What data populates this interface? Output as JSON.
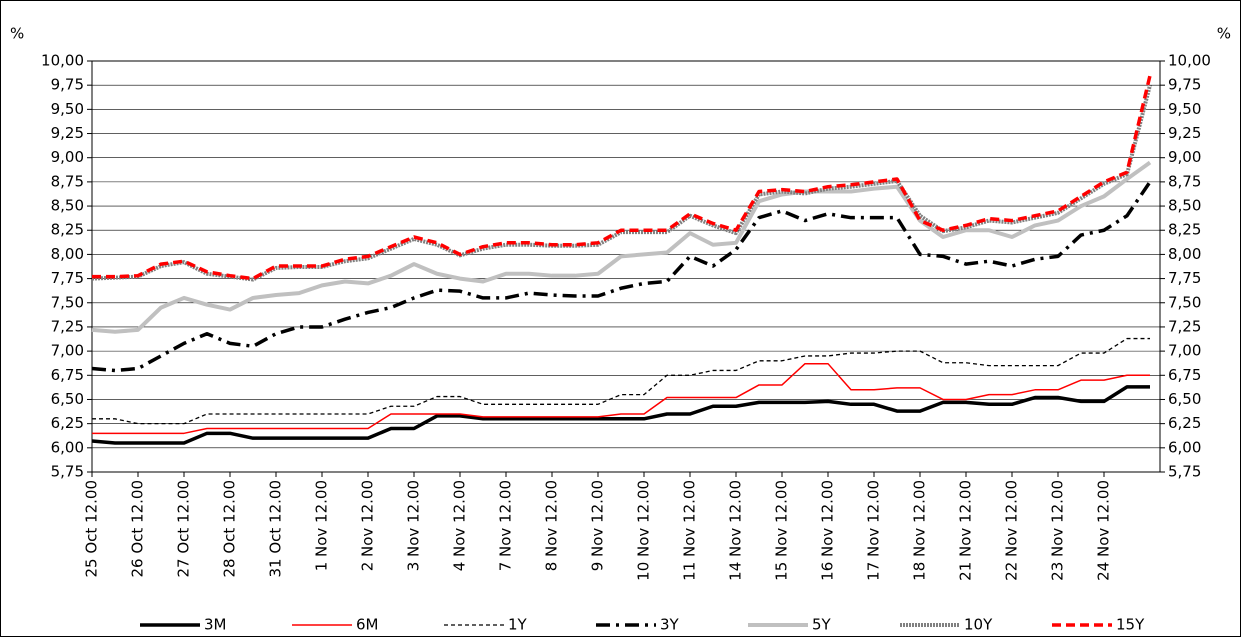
{
  "chart_data": {
    "type": "line",
    "y_axis_label": "%",
    "y2_axis_label": "%",
    "categories": [
      "25 Oct 12.00",
      null,
      "26 Oct 12.00",
      null,
      "27 Oct 12.00",
      null,
      "28 Oct 12.00",
      null,
      "31 Oct 12.00",
      null,
      "1 Nov 12.00",
      null,
      "2 Nov 12.00",
      null,
      "3 Nov 12.00",
      null,
      "4 Nov 12.00",
      null,
      "7 Nov 12.00",
      null,
      "8 Nov 12.00",
      null,
      "9 Nov 12.00",
      null,
      "10 Nov 12.00",
      null,
      "11 Nov 12.00",
      null,
      "14 Nov 12.00",
      null,
      "15 Nov 12.00",
      null,
      "16 Nov 12.00",
      null,
      "17 Nov 12.00",
      null,
      "18 Nov 12.00",
      null,
      "21 Nov 12.00",
      null,
      "22 Nov 12.00",
      null,
      "23 Nov 12.00",
      null,
      "24 Nov 12.00",
      null,
      null
    ],
    "series": [
      {
        "name": "3M",
        "color": "#000000",
        "width": 3.5,
        "dash": "solid",
        "values": [
          6.07,
          6.05,
          6.05,
          6.05,
          6.05,
          6.15,
          6.15,
          6.1,
          6.1,
          6.1,
          6.1,
          6.1,
          6.1,
          6.2,
          6.2,
          6.33,
          6.33,
          6.3,
          6.3,
          6.3,
          6.3,
          6.3,
          6.3,
          6.3,
          6.3,
          6.35,
          6.35,
          6.43,
          6.43,
          6.47,
          6.47,
          6.47,
          6.48,
          6.45,
          6.45,
          6.38,
          6.38,
          6.47,
          6.47,
          6.45,
          6.45,
          6.52,
          6.52,
          6.48,
          6.48,
          6.63,
          6.63
        ]
      },
      {
        "name": "6M",
        "color": "#ff0000",
        "width": 1.5,
        "dash": "solid",
        "values": [
          6.15,
          6.15,
          6.15,
          6.15,
          6.15,
          6.2,
          6.2,
          6.2,
          6.2,
          6.2,
          6.2,
          6.2,
          6.2,
          6.35,
          6.35,
          6.35,
          6.35,
          6.32,
          6.32,
          6.32,
          6.32,
          6.32,
          6.32,
          6.35,
          6.35,
          6.52,
          6.52,
          6.52,
          6.52,
          6.65,
          6.65,
          6.87,
          6.87,
          6.6,
          6.6,
          6.62,
          6.62,
          6.5,
          6.5,
          6.55,
          6.55,
          6.6,
          6.6,
          6.7,
          6.7,
          6.75,
          6.75
        ]
      },
      {
        "name": "1Y",
        "color": "#000000",
        "width": 1.3,
        "dash": "dashed",
        "values": [
          6.3,
          6.3,
          6.25,
          6.25,
          6.25,
          6.35,
          6.35,
          6.35,
          6.35,
          6.35,
          6.35,
          6.35,
          6.35,
          6.43,
          6.43,
          6.53,
          6.53,
          6.45,
          6.45,
          6.45,
          6.45,
          6.45,
          6.45,
          6.55,
          6.55,
          6.75,
          6.75,
          6.8,
          6.8,
          6.9,
          6.9,
          6.95,
          6.95,
          6.98,
          6.98,
          7.0,
          7.0,
          6.88,
          6.88,
          6.85,
          6.85,
          6.85,
          6.85,
          6.98,
          6.98,
          7.13,
          7.13
        ]
      },
      {
        "name": "3Y",
        "color": "#000000",
        "width": 3.5,
        "dash": "dashdot",
        "values": [
          6.82,
          6.8,
          6.82,
          6.95,
          7.08,
          7.18,
          7.08,
          7.05,
          7.18,
          7.25,
          7.25,
          7.33,
          7.4,
          7.45,
          7.55,
          7.63,
          7.62,
          7.55,
          7.55,
          7.6,
          7.58,
          7.57,
          7.57,
          7.65,
          7.7,
          7.72,
          7.98,
          7.88,
          8.05,
          8.38,
          8.45,
          8.35,
          8.42,
          8.38,
          8.38,
          8.38,
          8.0,
          7.98,
          7.9,
          7.93,
          7.88,
          7.95,
          7.98,
          8.2,
          8.25,
          8.4,
          8.75
        ]
      },
      {
        "name": "5Y",
        "color": "#c0c0c0",
        "width": 4,
        "dash": "solid",
        "values": [
          7.22,
          7.2,
          7.22,
          7.45,
          7.55,
          7.48,
          7.43,
          7.55,
          7.58,
          7.6,
          7.68,
          7.72,
          7.7,
          7.78,
          7.9,
          7.8,
          7.75,
          7.72,
          7.8,
          7.8,
          7.78,
          7.78,
          7.8,
          7.98,
          8.0,
          8.02,
          8.22,
          8.1,
          8.12,
          8.55,
          8.62,
          8.65,
          8.65,
          8.65,
          8.68,
          8.7,
          8.35,
          8.18,
          8.25,
          8.25,
          8.18,
          8.3,
          8.35,
          8.5,
          8.6,
          8.78,
          8.95
        ]
      },
      {
        "name": "10Y",
        "color": "#808080",
        "width": 4,
        "dash": "dotted",
        "values": [
          7.75,
          7.76,
          7.77,
          7.88,
          7.92,
          7.8,
          7.77,
          7.74,
          7.86,
          7.87,
          7.87,
          7.93,
          7.96,
          8.06,
          8.16,
          8.1,
          7.99,
          8.06,
          8.1,
          8.1,
          8.09,
          8.09,
          8.1,
          8.23,
          8.23,
          8.23,
          8.4,
          8.3,
          8.22,
          8.62,
          8.65,
          8.63,
          8.68,
          8.7,
          8.73,
          8.76,
          8.4,
          8.24,
          8.28,
          8.35,
          8.33,
          8.38,
          8.43,
          8.58,
          8.73,
          8.83,
          9.75
        ]
      },
      {
        "name": "15Y",
        "color": "#ff0000",
        "width": 3.5,
        "dash": "bigdash",
        "values": [
          7.77,
          7.77,
          7.78,
          7.9,
          7.93,
          7.82,
          7.78,
          7.75,
          7.88,
          7.88,
          7.88,
          7.95,
          7.98,
          8.08,
          8.18,
          8.12,
          8.0,
          8.08,
          8.12,
          8.12,
          8.1,
          8.1,
          8.12,
          8.25,
          8.25,
          8.25,
          8.42,
          8.32,
          8.25,
          8.65,
          8.67,
          8.65,
          8.7,
          8.72,
          8.75,
          8.78,
          8.35,
          8.25,
          8.3,
          8.37,
          8.35,
          8.4,
          8.45,
          8.6,
          8.75,
          8.85,
          9.85
        ]
      }
    ],
    "ylim": [
      5.75,
      10.0
    ],
    "yticks": [
      {
        "value": 5.75,
        "label": "5,75"
      },
      {
        "value": 6.0,
        "label": "6,00"
      },
      {
        "value": 6.25,
        "label": "6,25"
      },
      {
        "value": 6.5,
        "label": "6,50"
      },
      {
        "value": 6.75,
        "label": "6,75"
      },
      {
        "value": 7.0,
        "label": "7,00"
      },
      {
        "value": 7.25,
        "label": "7,25"
      },
      {
        "value": 7.5,
        "label": "7,50"
      },
      {
        "value": 7.75,
        "label": "7,75"
      },
      {
        "value": 8.0,
        "label": "8,00"
      },
      {
        "value": 8.25,
        "label": "8,25"
      },
      {
        "value": 8.5,
        "label": "8,50"
      },
      {
        "value": 8.75,
        "label": "8,75"
      },
      {
        "value": 9.0,
        "label": "9,00"
      },
      {
        "value": 9.25,
        "label": "9,25"
      },
      {
        "value": 9.5,
        "label": "9,50"
      },
      {
        "value": 9.75,
        "label": "9,75"
      },
      {
        "value": 10.0,
        "label": "10,00"
      }
    ],
    "y2lim": [
      5.75,
      10.0
    ],
    "y2ticks": [
      {
        "value": 5.75,
        "label": "5,75"
      },
      {
        "value": 6.0,
        "label": "6,00"
      },
      {
        "value": 6.25,
        "label": "6,25"
      },
      {
        "value": 6.5,
        "label": "6,50"
      },
      {
        "value": 6.75,
        "label": "6,75"
      },
      {
        "value": 7.0,
        "label": "7,00"
      },
      {
        "value": 7.25,
        "label": "7,25"
      },
      {
        "value": 7.5,
        "label": "7,50"
      },
      {
        "value": 7.75,
        "label": "7,75"
      },
      {
        "value": 8.0,
        "label": "8,00"
      },
      {
        "value": 8.25,
        "label": "8,25"
      },
      {
        "value": 8.5,
        "label": "8,50"
      },
      {
        "value": 8.75,
        "label": "8,75"
      },
      {
        "value": 9.0,
        "label": "9,00"
      },
      {
        "value": 9.25,
        "label": "9,25"
      },
      {
        "value": 9.5,
        "label": "9,50"
      },
      {
        "value": 9.75,
        "label": "9,75"
      },
      {
        "value": 10.0,
        "label": "10,00"
      }
    ],
    "grid": true,
    "legend": "bottom"
  }
}
